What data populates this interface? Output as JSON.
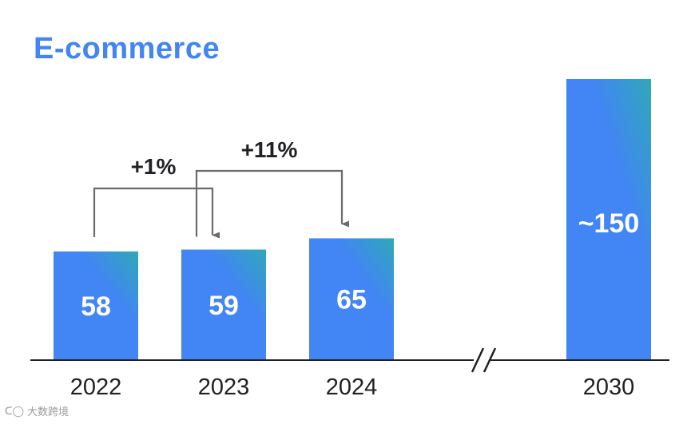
{
  "title": "E-commerce",
  "chart_data": {
    "type": "bar",
    "categories": [
      "2022",
      "2023",
      "2024",
      "2030"
    ],
    "values": [
      58,
      59,
      65,
      150
    ],
    "data_labels": [
      "58",
      "59",
      "65",
      "~150"
    ],
    "growth_annotations": [
      {
        "from": "2022",
        "to": "2023",
        "label": "+1%"
      },
      {
        "from": "2023",
        "to": "2024",
        "label": "+11%"
      }
    ],
    "axis_break_between": [
      "2024",
      "2030"
    ],
    "ylim": [
      0,
      150
    ],
    "grid": false,
    "colors": {
      "bar_start": "#4285f4",
      "bar_end": "#2fa8b8",
      "axis": "#202124",
      "arrow": "#6b6b6b",
      "title": "#4285f4"
    }
  },
  "watermark": {
    "text": "大数跨境"
  }
}
